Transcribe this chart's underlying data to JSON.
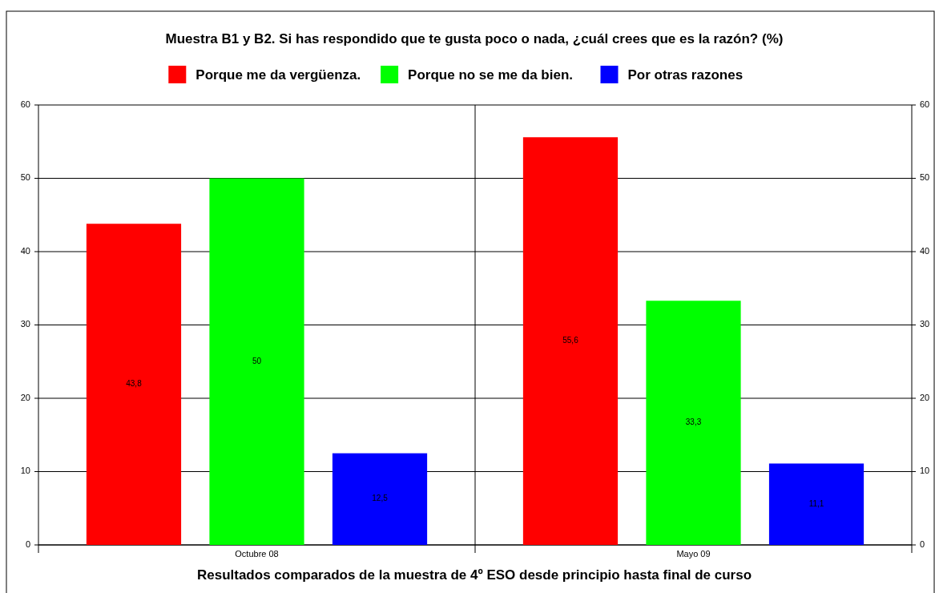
{
  "chart_data": {
    "type": "bar",
    "title": "Muestra B1 y B2. Si has respondido que te gusta poco o nada, ¿cuál crees que es la razón? (%)",
    "xlabel": "Resultados comparados de la muestra de 4º ESO desde principio hasta final de curso",
    "categories": [
      "Octubre 08",
      "Mayo 09"
    ],
    "series": [
      {
        "name": "Porque me da vergüenza.",
        "color": "#ff0000",
        "values": [
          43.8,
          55.6
        ],
        "value_labels": [
          "43,8",
          "55,6"
        ]
      },
      {
        "name": "Porque no se me da bien.",
        "color": "#00ff00",
        "values": [
          50,
          33.3
        ],
        "value_labels": [
          "50",
          "33,3"
        ]
      },
      {
        "name": "Por otras razones",
        "color": "#0000ff",
        "values": [
          12.5,
          11.1
        ],
        "value_labels": [
          "12,5",
          "11,1"
        ]
      }
    ],
    "ylim": [
      0,
      60
    ],
    "yticks": [
      0,
      10,
      20,
      30,
      40,
      50,
      60
    ],
    "y2lim": [
      0,
      60
    ],
    "y2ticks": [
      0,
      10,
      20,
      30,
      40,
      50,
      60
    ],
    "grid": true,
    "legend": "top"
  }
}
